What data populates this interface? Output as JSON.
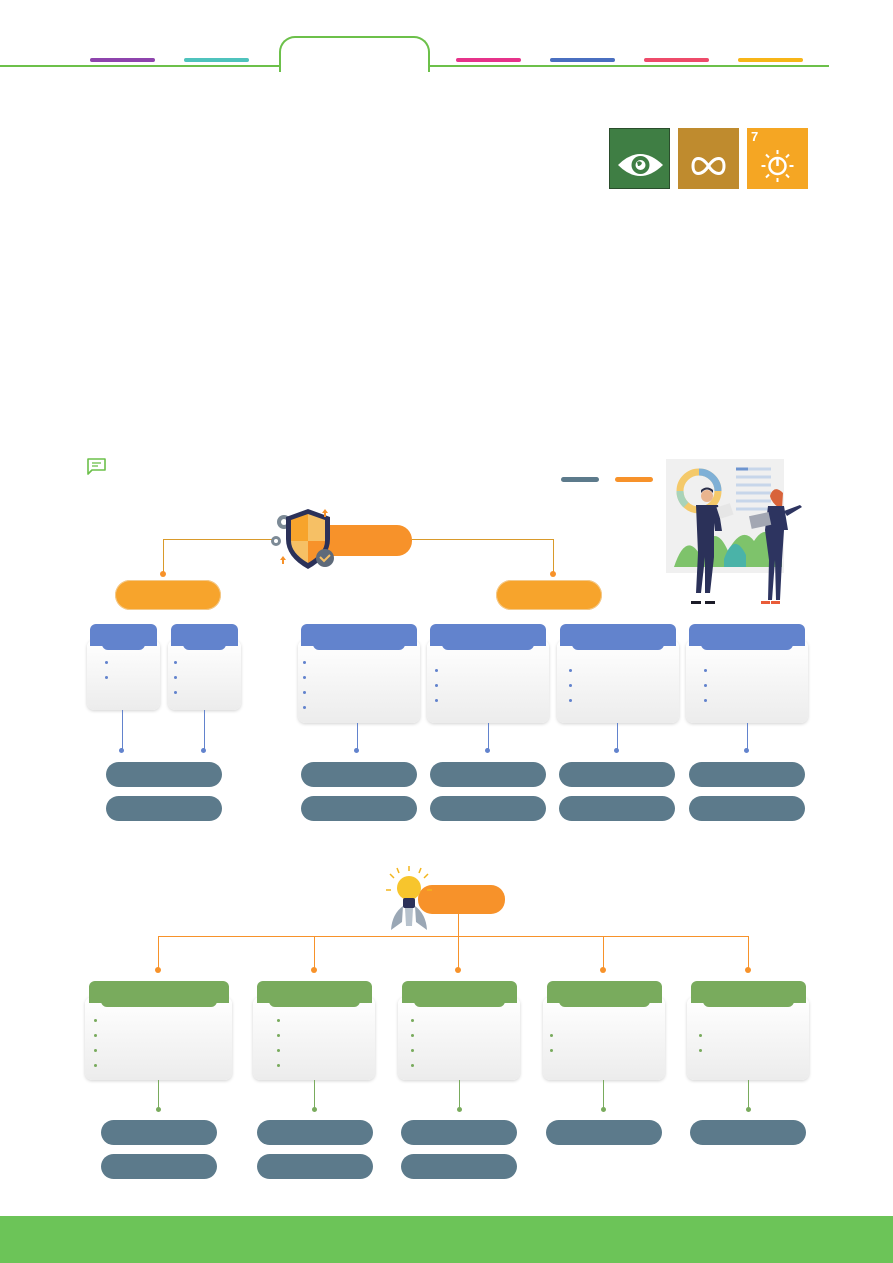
{
  "header": {
    "segment_colors": [
      "#8e44ad",
      "#4fc3bd",
      "#e6338a",
      "#4a6fc0",
      "#ee4b6a",
      "#f7b518"
    ],
    "line_color": "#6cc04a"
  },
  "sdg_badges": [
    {
      "icon": "eye-globe-icon",
      "color": "#3f7e44",
      "number": ""
    },
    {
      "icon": "infinity-icon",
      "color": "#bf8b2e",
      "number": ""
    },
    {
      "icon": "sun-power-icon",
      "color": "#fcc30b",
      "number": "7"
    }
  ],
  "note_icon": "speech-note-icon",
  "legend": {
    "colors": [
      "#5c7a8b",
      "#f7922a"
    ]
  },
  "diagram1": {
    "icon": "shield-gear-icon",
    "center_color": "#f7922a",
    "branch_color": "#f7a42c",
    "card_color": "#6283cd"
  },
  "diagram2": {
    "icon": "lightbulb-rocket-icon",
    "center_color": "#f7922a",
    "card_color": "#79ab5d"
  },
  "footer": {
    "color": "#6cc458"
  }
}
